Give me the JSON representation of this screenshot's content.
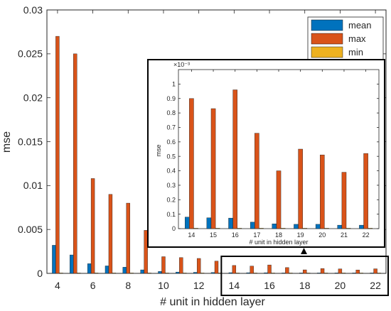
{
  "chart_data": [
    {
      "type": "bar",
      "xlabel": "# unit in hidden layer",
      "ylabel": "mse",
      "x": [
        4,
        5,
        6,
        7,
        8,
        9,
        10,
        11,
        12,
        13,
        14,
        15,
        16,
        17,
        18,
        19,
        20,
        21,
        22
      ],
      "xticks": [
        4,
        6,
        8,
        10,
        12,
        14,
        16,
        18,
        20,
        22
      ],
      "ylim": [
        0,
        0.03
      ],
      "yticks": [
        0,
        0.005,
        0.01,
        0.015,
        0.02,
        0.025,
        0.03
      ],
      "ytick_labels": [
        "0",
        "0.005",
        "0.01",
        "0.015",
        "0.02",
        "0.025",
        "0.03"
      ],
      "legend_position": "top-right",
      "series": [
        {
          "name": "mean",
          "color": "#0072BD",
          "values": [
            0.0032,
            0.0021,
            0.0011,
            0.00085,
            0.0007,
            0.0004,
            0.00022,
            0.00015,
            0.00012,
            0.0001,
            8e-05,
            7.5e-05,
            7.3e-05,
            4.5e-05,
            3.3e-05,
            3e-05,
            3e-05,
            2.4e-05,
            2.4e-05
          ]
        },
        {
          "name": "max",
          "color": "#D95319",
          "values": [
            0.027,
            0.025,
            0.0108,
            0.009,
            0.008,
            0.0049,
            0.0019,
            0.0018,
            0.0017,
            0.0014,
            0.0009,
            0.00083,
            0.00096,
            0.00066,
            0.0004,
            0.00055,
            0.00051,
            0.00039,
            0.00052
          ]
        },
        {
          "name": "min",
          "color": "#EDB120",
          "values": [
            2e-05,
            2e-05,
            1e-05,
            1e-05,
            1e-05,
            1e-05,
            5e-06,
            5e-06,
            5e-06,
            5e-06,
            2e-06,
            2e-06,
            2e-06,
            2e-06,
            2e-06,
            2e-06,
            2e-06,
            2e-06,
            2e-06
          ]
        }
      ],
      "highlight": {
        "x_range": [
          14,
          22
        ],
        "color": "#000000"
      }
    },
    {
      "type": "bar",
      "inset": true,
      "xlabel": "# unit in hidden layer",
      "ylabel": "mse",
      "exponent_label": "×10⁻³",
      "x": [
        14,
        15,
        16,
        17,
        18,
        19,
        20,
        21,
        22
      ],
      "xticks": [
        14,
        15,
        16,
        17,
        18,
        19,
        20,
        21,
        22
      ],
      "ylim": [
        0,
        1.1
      ],
      "yticks": [
        0,
        0.1,
        0.2,
        0.3,
        0.4,
        0.5,
        0.6,
        0.7,
        0.8,
        0.9,
        1
      ],
      "ytick_labels": [
        "0",
        "0.1",
        "0.2",
        "0.3",
        "0.4",
        "0.5",
        "0.6",
        "0.7",
        "0.8",
        "0.9",
        "1"
      ],
      "series": [
        {
          "name": "mean",
          "color": "#0072BD",
          "values": [
            0.08,
            0.075,
            0.073,
            0.045,
            0.033,
            0.03,
            0.03,
            0.024,
            0.024
          ]
        },
        {
          "name": "max",
          "color": "#D95319",
          "values": [
            0.9,
            0.83,
            0.96,
            0.66,
            0.4,
            0.55,
            0.51,
            0.39,
            0.52
          ]
        },
        {
          "name": "min",
          "color": "#EDB120",
          "values": [
            0.002,
            0.002,
            0.002,
            0.002,
            0.002,
            0.002,
            0.002,
            0.002,
            0.002
          ]
        }
      ]
    }
  ]
}
